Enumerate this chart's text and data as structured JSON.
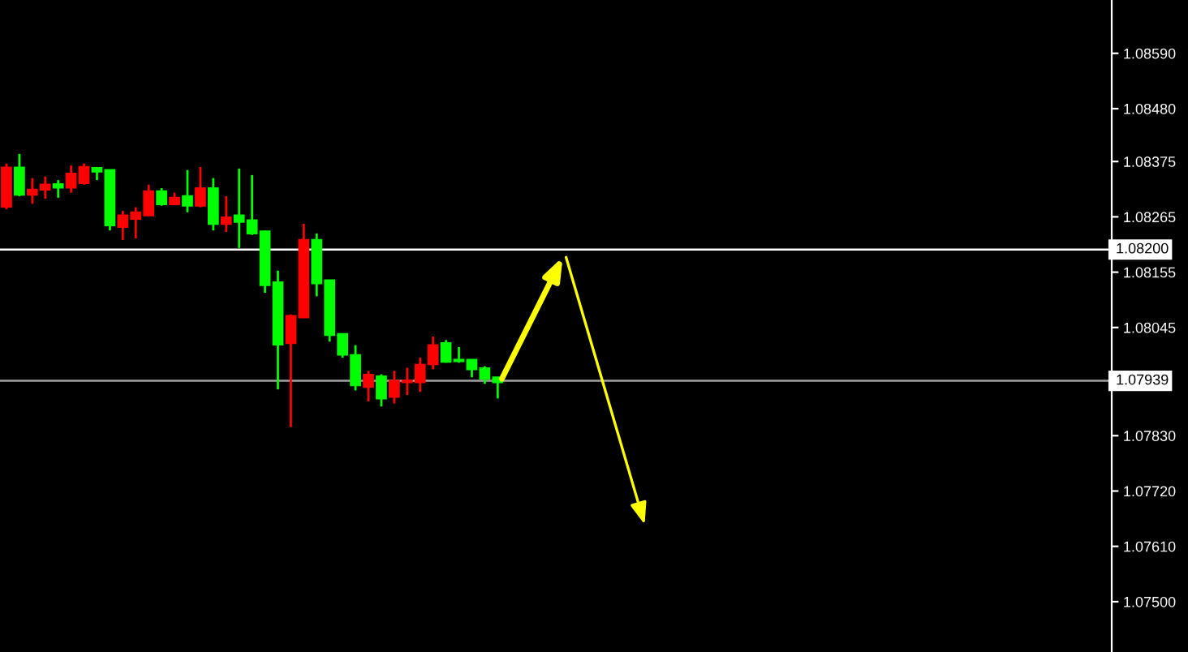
{
  "chart_data": {
    "type": "candlestick",
    "categories": [
      null,
      null,
      null,
      null,
      null,
      null,
      null,
      null,
      null,
      null,
      null,
      null,
      null,
      null,
      null,
      null,
      null,
      null,
      null,
      null,
      null,
      null,
      null,
      null,
      null,
      null,
      null,
      null,
      null,
      null,
      null,
      null,
      null,
      null,
      null,
      null,
      null,
      null,
      null,
      null,
      null,
      null,
      null,
      null,
      null,
      null,
      null,
      null,
      null,
      null,
      null,
      null,
      null,
      null,
      null,
      null,
      null,
      null,
      null,
      null,
      null,
      null,
      null,
      null,
      null,
      null,
      null,
      null,
      null,
      null,
      null,
      null,
      null,
      null,
      null,
      null,
      null,
      null,
      null,
      null,
      null,
      null,
      null,
      null,
      null,
      null
    ],
    "ohlc": [
      [
        1.08363,
        1.08371,
        1.0828,
        1.08285
      ],
      [
        1.08309,
        1.0839,
        1.08306,
        1.08363
      ],
      [
        1.08319,
        1.08342,
        1.08291,
        1.08309
      ],
      [
        1.08329,
        1.08345,
        1.08301,
        1.08319
      ],
      [
        1.08323,
        1.08338,
        1.08303,
        1.0833
      ],
      [
        1.08351,
        1.08367,
        1.08313,
        1.08323
      ],
      [
        1.08364,
        1.08371,
        1.08329,
        1.08332
      ],
      [
        1.08355,
        1.08364,
        1.08338,
        1.08362
      ],
      [
        1.08248,
        1.08358,
        1.08238,
        1.08358
      ],
      [
        1.08268,
        1.08277,
        1.08219,
        1.08245
      ],
      [
        1.08274,
        1.08284,
        1.08222,
        1.08261
      ],
      [
        1.08316,
        1.08329,
        1.08267,
        1.08268
      ],
      [
        1.0829,
        1.08322,
        1.08287,
        1.08316
      ],
      [
        1.08303,
        1.08313,
        1.08289,
        1.0829
      ],
      [
        1.08287,
        1.08358,
        1.08274,
        1.08306
      ],
      [
        1.08322,
        1.08364,
        1.08284,
        1.08287
      ],
      [
        1.08251,
        1.08342,
        1.08238,
        1.08322
      ],
      [
        1.08264,
        1.08306,
        1.08235,
        1.08251
      ],
      [
        1.08255,
        1.08361,
        1.08203,
        1.08268
      ],
      [
        1.08232,
        1.08348,
        1.08229,
        1.08258
      ],
      [
        1.08129,
        1.08238,
        1.08114,
        1.08236
      ],
      [
        1.08011,
        1.08158,
        1.07922,
        1.08135
      ],
      [
        1.08068,
        1.08071,
        1.07847,
        1.08014
      ],
      [
        1.08219,
        1.08251,
        1.08064,
        1.08065
      ],
      [
        1.08133,
        1.08232,
        1.08107,
        1.08219
      ],
      [
        1.0803,
        1.08139,
        1.08017,
        1.08139
      ],
      [
        1.07991,
        1.08032,
        1.07985,
        1.08032
      ],
      [
        1.0793,
        1.0801,
        1.0792,
        1.0799
      ],
      [
        1.07951,
        1.07959,
        1.07898,
        1.07927
      ],
      [
        1.07904,
        1.07952,
        1.07888,
        1.07948
      ],
      [
        1.07939,
        1.07959,
        1.07894,
        1.07907
      ],
      [
        1.0794,
        1.07965,
        1.07911,
        1.07936
      ],
      [
        1.07971,
        1.07985,
        1.07917,
        1.07936
      ],
      [
        1.0801,
        1.08027,
        1.07962,
        1.07972
      ],
      [
        1.07977,
        1.0802,
        1.07975,
        1.08014
      ],
      [
        1.07978,
        1.08006,
        1.07975,
        1.07981
      ],
      [
        1.07962,
        1.07981,
        1.07946,
        1.07981
      ],
      [
        1.07943,
        1.07968,
        1.07933,
        1.07964
      ],
      [
        1.07936,
        1.07946,
        1.07904,
        1.07946
      ],
      null,
      null,
      null,
      null,
      null,
      null,
      null,
      null,
      null,
      null,
      null,
      null,
      null,
      null,
      null,
      null,
      null,
      null,
      null,
      null,
      null,
      null,
      null,
      null,
      null,
      null,
      null,
      null,
      null,
      null,
      null,
      null,
      null,
      null,
      null,
      null,
      null,
      null,
      null,
      null,
      null,
      null,
      null,
      null,
      null,
      null,
      null
    ],
    "colors": [
      "#ff0000",
      "#00ff00",
      "#ff0000",
      "#ff0000",
      "#00ff00",
      "#ff0000",
      "#ff0000",
      "#00ff00",
      "#00ff00",
      "#ff0000",
      "#ff0000",
      "#ff0000",
      "#00ff00",
      "#ff0000",
      "#00ff00",
      "#ff0000",
      "#00ff00",
      "#ff0000",
      "#00ff00",
      "#00ff00",
      "#00ff00",
      "#00ff00",
      "#ff0000",
      "#ff0000",
      "#00ff00",
      "#00ff00",
      "#00ff00",
      "#00ff00",
      "#ff0000",
      "#00ff00",
      "#ff0000",
      "#ff0000",
      "#ff0000",
      "#ff0000",
      "#00ff00",
      "#00ff00",
      "#00ff00",
      "#00ff00",
      "#00ff00",
      null,
      null,
      null,
      null,
      null,
      null,
      null,
      null,
      null,
      null,
      null,
      null,
      null,
      null,
      null,
      null,
      null,
      null,
      null,
      null,
      null,
      null,
      null,
      null,
      null,
      null,
      null,
      null,
      null,
      null,
      null,
      null,
      null,
      null,
      null,
      null,
      null,
      null,
      null,
      null,
      null,
      null,
      null,
      null,
      null,
      null,
      null
    ],
    "ylim": [
      1.074,
      1.08696
    ],
    "yticks": [
      {
        "value": 1.0859,
        "label": "1.08590"
      },
      {
        "value": 1.0848,
        "label": "1.08480"
      },
      {
        "value": 1.08375,
        "label": "1.08375"
      },
      {
        "value": 1.08265,
        "label": "1.08265"
      },
      {
        "value": 1.08155,
        "label": "1.08155"
      },
      {
        "value": 1.08045,
        "label": "1.08045"
      },
      {
        "value": 1.0783,
        "label": "1.07830"
      },
      {
        "value": 1.0772,
        "label": "1.07720"
      },
      {
        "value": 1.0761,
        "label": "1.07610"
      },
      {
        "value": 1.075,
        "label": "1.07500"
      }
    ],
    "ref_lines": [
      {
        "axis": "y",
        "value": 1.082,
        "label": "1.08200",
        "color": "#ffffff",
        "line_style": "solid"
      },
      {
        "axis": "y",
        "value": 1.07939,
        "label": "1.07939",
        "color": "#a0a0a0",
        "line_style": "solid"
      }
    ],
    "grid": false
  }
}
